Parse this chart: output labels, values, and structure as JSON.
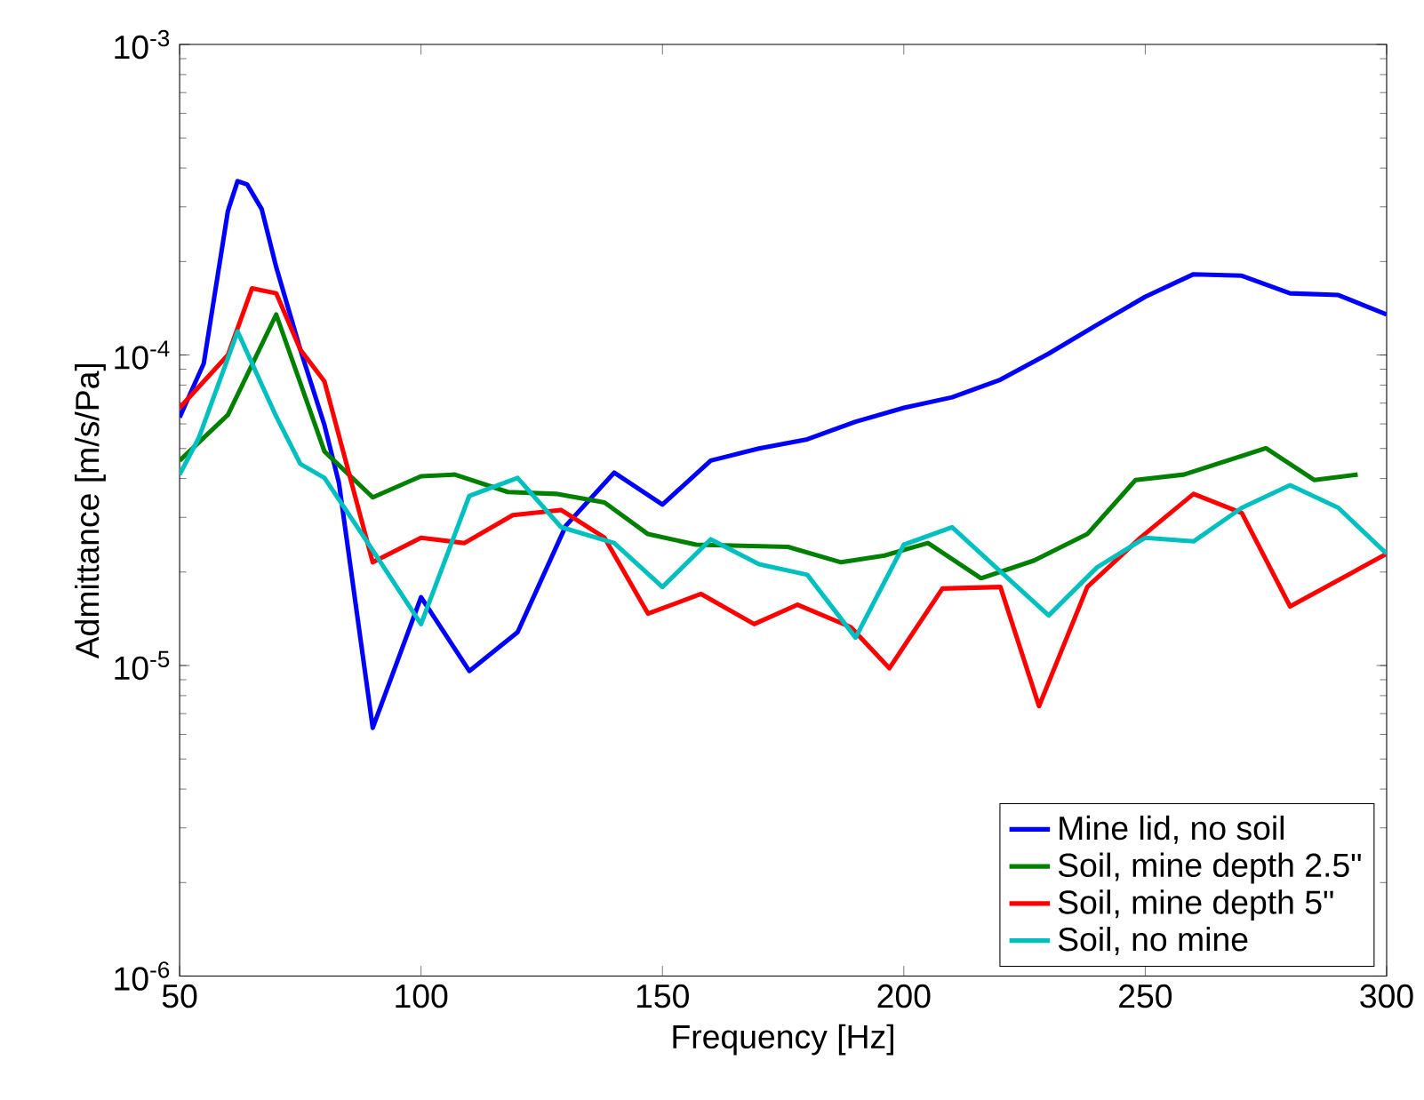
{
  "chart_data": {
    "type": "line",
    "xlabel": "Frequency [Hz]",
    "ylabel": "Admittance [m/s/Pa]",
    "log": "y",
    "xlim": [
      50,
      300
    ],
    "ylim": [
      1e-06,
      0.001
    ],
    "xticks": [
      50,
      100,
      150,
      200,
      250,
      300
    ],
    "yticks": [
      {
        "value": 1e-06,
        "label": "10$^{-6}$"
      },
      {
        "value": 1e-05,
        "label": "10$^{-5}$"
      },
      {
        "value": 0.0001,
        "label": "10$^{-4}$"
      },
      {
        "value": 0.001,
        "label": "10$^{-3}$"
      }
    ],
    "legend": "bottom right",
    "grid": false,
    "marker": "none",
    "line_style": "solid",
    "series": [
      {
        "name": "Mine lid, no soil",
        "color": "#0000ff",
        "x": [
          50,
          55,
          60,
          62,
          64,
          67,
          70,
          75,
          80,
          83,
          90,
          100,
          110,
          120,
          130,
          140,
          150,
          160,
          170,
          180,
          190,
          200,
          210,
          220,
          230,
          240,
          250,
          260,
          270,
          280,
          290,
          300
        ],
        "values": [
          6.3e-05,
          9.4e-05,
          0.000291,
          0.000363,
          0.000354,
          0.000295,
          0.000192,
          0.000104,
          5.94e-05,
          3.87e-05,
          6.3e-06,
          1.66e-05,
          9.6e-06,
          1.28e-05,
          2.82e-05,
          4.18e-05,
          3.3e-05,
          4.57e-05,
          5e-05,
          5.35e-05,
          6.1e-05,
          6.76e-05,
          7.31e-05,
          8.33e-05,
          0.000101,
          0.000125,
          0.000154,
          0.000182,
          0.00018,
          0.000158,
          0.000156,
          0.000135
        ]
      },
      {
        "name": "Soil, mine depth 2.5\"",
        "color": "#008000",
        "x": [
          50,
          60,
          70,
          80,
          90,
          100,
          107,
          118,
          128,
          138,
          147,
          157,
          176,
          187,
          196,
          205,
          216,
          227,
          238,
          248,
          258,
          275,
          285,
          294
        ],
        "values": [
          4.57e-05,
          6.42e-05,
          0.000135,
          4.89e-05,
          3.48e-05,
          4.07e-05,
          4.12e-05,
          3.62e-05,
          3.57e-05,
          3.35e-05,
          2.65e-05,
          2.45e-05,
          2.41e-05,
          2.15e-05,
          2.26e-05,
          2.48e-05,
          1.91e-05,
          2.18e-05,
          2.65e-05,
          3.96e-05,
          4.12e-05,
          5.01e-05,
          3.96e-05,
          4.12e-05
        ]
      },
      {
        "name": "Soil, mine depth 5\"",
        "color": "#ff0000",
        "x": [
          50,
          60,
          65,
          70,
          75,
          80,
          90,
          100,
          109,
          119,
          129,
          138,
          147,
          158,
          169,
          178,
          189,
          197,
          208,
          220,
          228,
          238,
          249,
          260,
          270,
          280,
          300
        ],
        "values": [
          6.76e-05,
          0.0001,
          0.000164,
          0.000158,
          0.000104,
          8.22e-05,
          2.15e-05,
          2.58e-05,
          2.48e-05,
          3.05e-05,
          3.17e-05,
          2.58e-05,
          1.47e-05,
          1.7e-05,
          1.36e-05,
          1.57e-05,
          1.33e-05,
          9.8e-06,
          1.77e-05,
          1.79e-05,
          7.4e-06,
          1.79e-05,
          2.58e-05,
          3.57e-05,
          3.1e-05,
          1.55e-05,
          2.29e-05
        ]
      },
      {
        "name": "Soil, no mine",
        "color": "#00bfbf",
        "x": [
          50,
          54,
          62,
          70,
          75,
          80,
          89,
          100,
          110,
          120,
          129,
          140,
          150,
          160,
          170,
          180,
          190,
          200,
          210,
          220,
          230,
          240,
          250,
          260,
          270,
          280,
          290,
          300
        ],
        "values": [
          4.12e-05,
          5.42e-05,
          0.000119,
          6.34e-05,
          4.46e-05,
          4.02e-05,
          2.48e-05,
          1.36e-05,
          3.52e-05,
          4.02e-05,
          2.79e-05,
          2.48e-05,
          1.79e-05,
          2.55e-05,
          2.12e-05,
          1.96e-05,
          1.23e-05,
          2.45e-05,
          2.79e-05,
          2.01e-05,
          1.45e-05,
          2.07e-05,
          2.58e-05,
          2.51e-05,
          3.22e-05,
          3.81e-05,
          3.22e-05,
          2.29e-05
        ]
      }
    ]
  }
}
